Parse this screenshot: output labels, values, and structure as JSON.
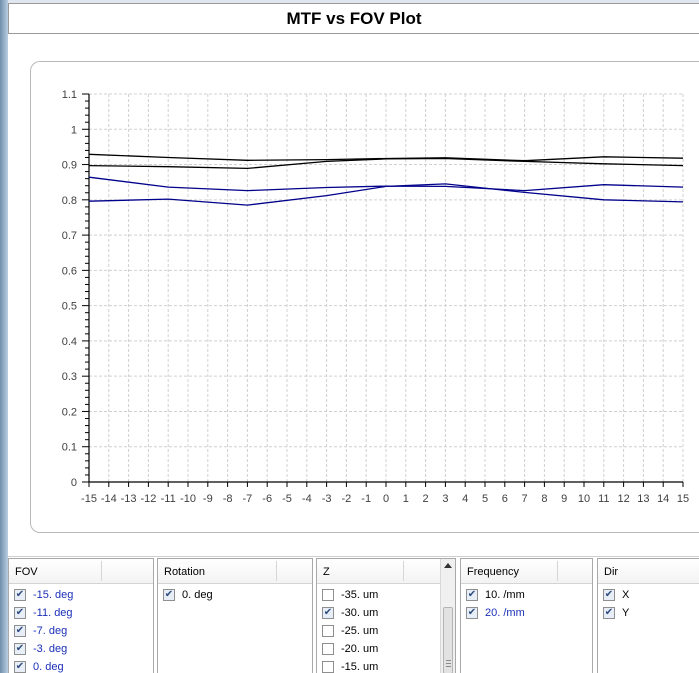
{
  "window": {
    "title": "MTF vs FOV Plot"
  },
  "chart_data": {
    "type": "line",
    "title": "",
    "xlabel": "",
    "ylabel": "",
    "xlim": [
      -15,
      15
    ],
    "ylim": [
      0,
      1.1
    ],
    "grid": true,
    "x_ticks": [
      "-15",
      "-14",
      "-13",
      "-12",
      "-11",
      "-10",
      "-9",
      "-8",
      "-7",
      "-6",
      "-5",
      "-4",
      "-3",
      "-2",
      "-1",
      "0",
      "1",
      "2",
      "3",
      "4",
      "5",
      "6",
      "7",
      "8",
      "9",
      "10",
      "11",
      "12",
      "13",
      "14",
      "15"
    ],
    "y_ticks": [
      "0",
      "0.1",
      "0.2",
      "0.3",
      "0.4",
      "0.5",
      "0.6",
      "0.7",
      "0.8",
      "0.9",
      "1",
      "1.1"
    ],
    "x": [
      -15,
      -11,
      -7,
      -3,
      0,
      3,
      7,
      11,
      15
    ],
    "series": [
      {
        "color": "#000000",
        "values": [
          0.929,
          0.92,
          0.912,
          0.914,
          0.917,
          0.919,
          0.911,
          0.922,
          0.918
        ]
      },
      {
        "color": "#000000",
        "values": [
          0.897,
          0.894,
          0.889,
          0.909,
          0.916,
          0.917,
          0.909,
          0.902,
          0.897
        ]
      },
      {
        "color": "#00008b",
        "values": [
          0.864,
          0.836,
          0.826,
          0.835,
          0.839,
          0.838,
          0.826,
          0.843,
          0.836
        ]
      },
      {
        "color": "#00008b",
        "values": [
          0.796,
          0.802,
          0.785,
          0.812,
          0.838,
          0.845,
          0.821,
          0.8,
          0.794
        ]
      }
    ]
  },
  "panels": {
    "fov": {
      "header": "FOV",
      "items": [
        {
          "label": "-15. deg",
          "checked": true
        },
        {
          "label": "-11. deg",
          "checked": true
        },
        {
          "label": "-7. deg",
          "checked": true
        },
        {
          "label": "-3. deg",
          "checked": true
        },
        {
          "label": "0. deg",
          "checked": true
        }
      ]
    },
    "rotation": {
      "header": "Rotation",
      "items": [
        {
          "label": "0. deg",
          "checked": true
        }
      ]
    },
    "z": {
      "header": "Z",
      "items": [
        {
          "label": "-35. um",
          "checked": false
        },
        {
          "label": "-30. um",
          "checked": true
        },
        {
          "label": "-25. um",
          "checked": false
        },
        {
          "label": "-20. um",
          "checked": false
        },
        {
          "label": "-15. um",
          "checked": false
        }
      ]
    },
    "frequency": {
      "header": "Frequency",
      "items": [
        {
          "label": "10. /mm",
          "checked": true
        },
        {
          "label": "20. /mm",
          "checked": true
        }
      ]
    },
    "dir": {
      "header": "Dir",
      "items": [
        {
          "label": "X",
          "checked": true
        },
        {
          "label": "Y",
          "checked": true
        }
      ]
    }
  },
  "colors": {
    "grid": "#d0d0d0",
    "axis": "#000000",
    "tick_label": "#404040",
    "blue_label": "#1b2fb8"
  },
  "icons": {
    "checkbox": "checkmark-icon",
    "scroll_up": "scroll-up-arrow-icon"
  }
}
